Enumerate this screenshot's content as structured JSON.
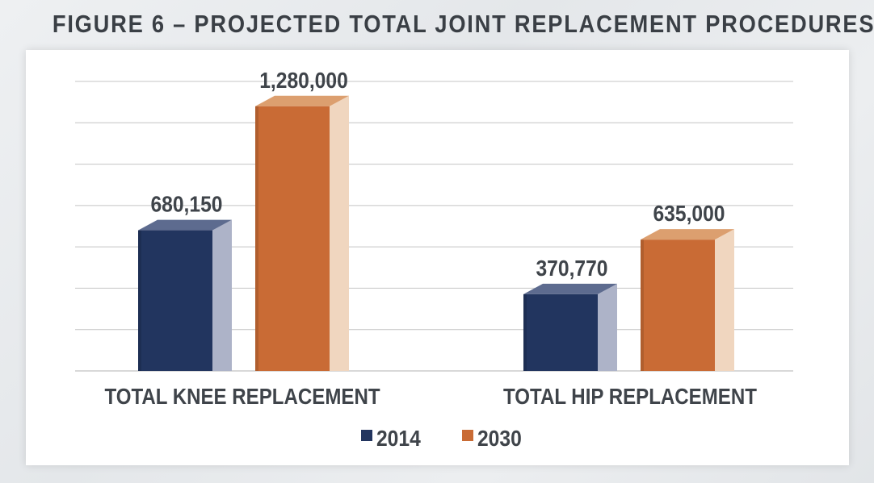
{
  "title": "FIGURE 6 – PROJECTED TOTAL JOINT REPLACEMENT PROCEDURES",
  "colors": {
    "2014_front": "#22355f",
    "2014_top": "#5d6b8f",
    "2014_side": "#adb3c8",
    "2030_front": "#c96b35",
    "2030_top": "#dc9f6f",
    "2030_side": "#f0d6bf",
    "gridline": "#c4c4c4",
    "text": "#3f444a"
  },
  "chart_data": {
    "type": "bar",
    "title": "FIGURE 6 – PROJECTED TOTAL JOINT REPLACEMENT PROCEDURES",
    "categories": [
      "TOTAL KNEE REPLACEMENT",
      "TOTAL HIP REPLACEMENT"
    ],
    "series": [
      {
        "name": "2014",
        "values": [
          680150,
          370770
        ],
        "labels": [
          "680,150",
          "370,770"
        ]
      },
      {
        "name": "2030",
        "values": [
          1280000,
          635000
        ],
        "labels": [
          "1,280,000",
          "635,000"
        ]
      }
    ],
    "ylim": [
      0,
      1400000
    ],
    "grid": true,
    "legend": "bottom-center"
  }
}
